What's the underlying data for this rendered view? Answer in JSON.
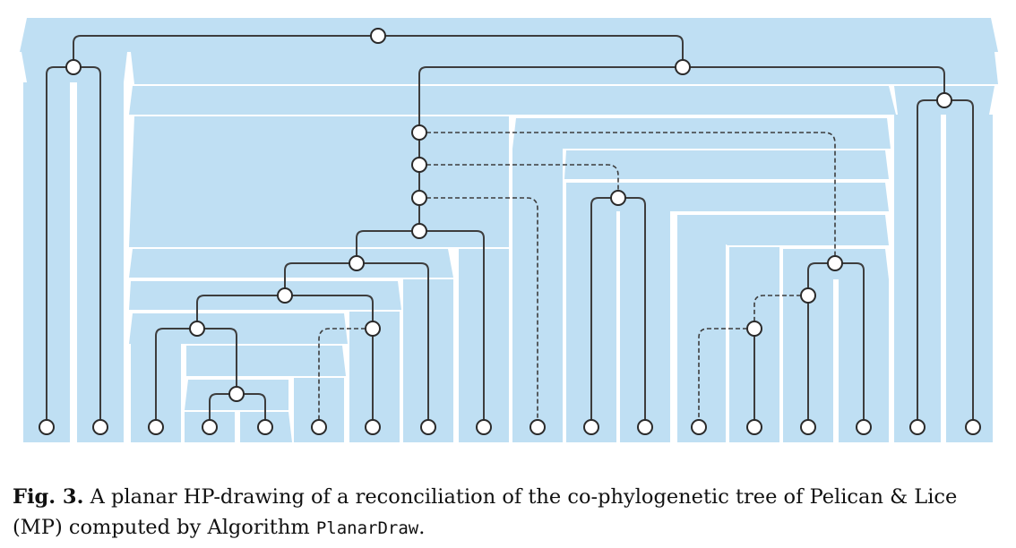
{
  "figure": {
    "host_color": "#bfdff3",
    "edge_color": "#3d3d3d",
    "node_fill": "#ffffff"
  },
  "caption": {
    "label": "Fig. 3.",
    "text_before": " A planar HP-drawing of a reconciliation of the co-phylogenetic tree of Pelican & Lice (MP) computed by Algorithm ",
    "algorithm": "PlanarDraw",
    "text_after": "."
  }
}
